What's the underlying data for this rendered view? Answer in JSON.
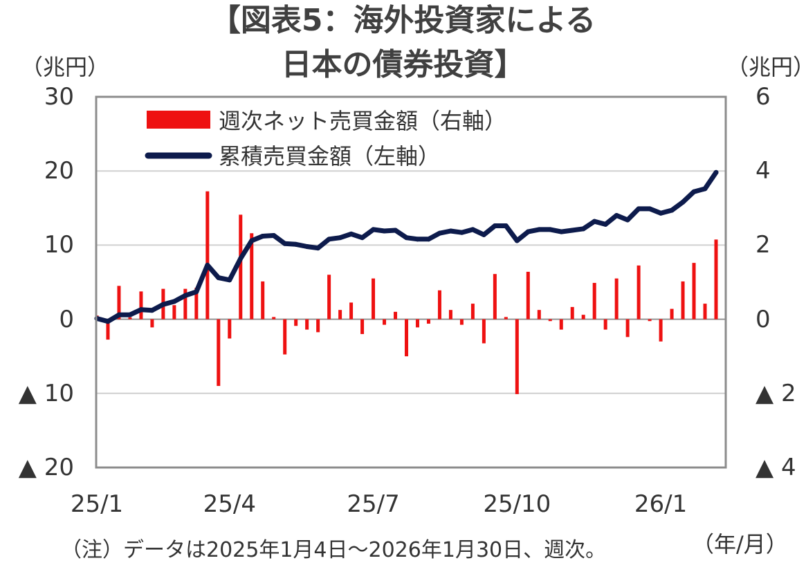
{
  "chart_data": {
    "type": "bar+line",
    "title": "【図表5：海外投資家による日本の債券投資】",
    "title_lines": [
      "【図表5：海外投資家による",
      "日本の債券投資】"
    ],
    "left_unit": "（兆円）",
    "right_unit": "（兆円）",
    "x_unit": "（年/月）",
    "note": "（注）データは2025年1月4日～2026年1月30日、週次。",
    "grid": true,
    "legend_position": "top-left",
    "colors": {
      "bars": "#ee1111",
      "line": "#0d1b4c",
      "grid": "#d0d0d0",
      "frame": "#8c8c8c"
    },
    "left_axis": {
      "min": -20,
      "max": 30,
      "ticks": [
        {
          "v": 30,
          "label": "30"
        },
        {
          "v": 20,
          "label": "20"
        },
        {
          "v": 10,
          "label": "10"
        },
        {
          "v": 0,
          "label": "0"
        },
        {
          "v": -10,
          "label": "▲ 10"
        },
        {
          "v": -20,
          "label": "▲ 20"
        }
      ]
    },
    "right_axis": {
      "min": -4,
      "max": 6,
      "ticks": [
        {
          "v": 6,
          "label": "6"
        },
        {
          "v": 4,
          "label": "4"
        },
        {
          "v": 2,
          "label": "2"
        },
        {
          "v": 0,
          "label": "0"
        },
        {
          "v": -2,
          "label": "▲ 2"
        },
        {
          "v": -4,
          "label": "▲ 4"
        }
      ]
    },
    "x_ticks": [
      {
        "index": 0,
        "label": "25/1"
      },
      {
        "index": 12,
        "label": "25/4"
      },
      {
        "index": 25,
        "label": "25/7"
      },
      {
        "index": 38,
        "label": "25/10"
      },
      {
        "index": 51,
        "label": "26/1"
      }
    ],
    "series": [
      {
        "name": "週次ネット売買金額（右軸）",
        "type": "bar",
        "axis": "right",
        "values": [
          0.1,
          -0.55,
          0.9,
          0.05,
          0.75,
          -0.22,
          0.82,
          0.38,
          0.82,
          0.85,
          3.45,
          -1.8,
          -0.52,
          2.82,
          2.32,
          1.02,
          0.06,
          -0.95,
          -0.18,
          -0.28,
          -0.35,
          1.2,
          0.25,
          0.45,
          -0.4,
          1.1,
          -0.15,
          0.2,
          -1.0,
          -0.22,
          -0.12,
          0.78,
          0.25,
          -0.15,
          0.42,
          -0.65,
          1.22,
          0.06,
          -2.02,
          1.28,
          0.25,
          -0.05,
          -0.28,
          0.33,
          0.12,
          0.98,
          -0.28,
          1.1,
          -0.48,
          1.45,
          -0.05,
          -0.6,
          0.28,
          1.02,
          1.52,
          0.42,
          2.15
        ]
      },
      {
        "name": "累積売買金額（左軸）",
        "type": "line",
        "axis": "left",
        "values": [
          0.1,
          -0.3,
          0.6,
          0.6,
          1.3,
          1.2,
          2.0,
          2.4,
          3.2,
          3.7,
          7.3,
          5.6,
          5.3,
          8.2,
          10.6,
          11.2,
          11.3,
          10.2,
          10.1,
          9.8,
          9.6,
          10.8,
          11.0,
          11.5,
          11.0,
          12.1,
          11.9,
          12.0,
          11.0,
          10.8,
          10.8,
          11.6,
          11.9,
          11.7,
          12.1,
          11.4,
          12.6,
          12.6,
          10.6,
          11.8,
          12.1,
          12.1,
          11.8,
          12.0,
          12.2,
          13.2,
          12.8,
          14.0,
          13.4,
          14.9,
          14.9,
          14.3,
          14.7,
          15.8,
          17.2,
          17.6,
          19.8
        ]
      }
    ]
  }
}
